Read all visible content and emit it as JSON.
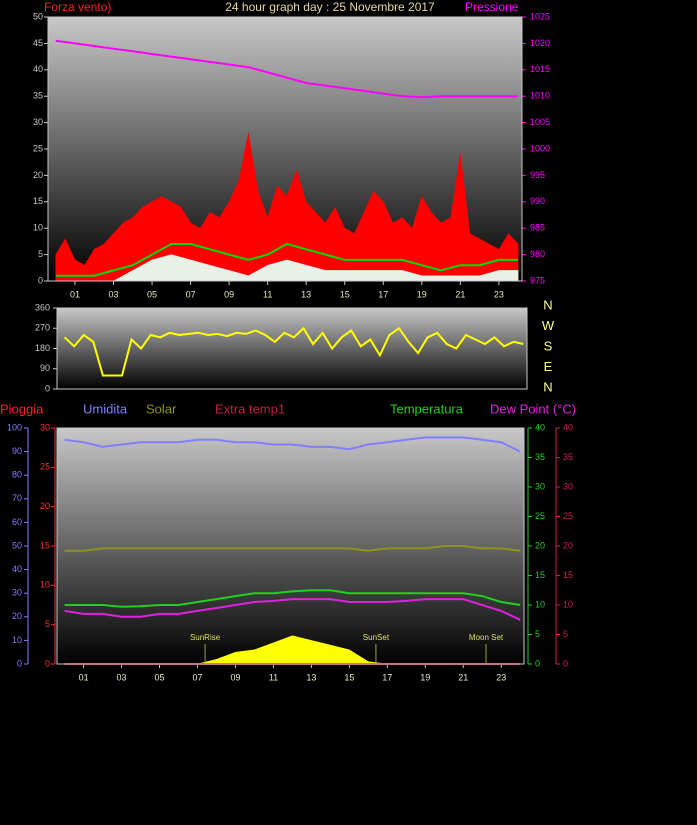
{
  "chart_data": [
    {
      "type": "line",
      "title": "24 hour graph day : 25 Novembre 2017",
      "ylabel": "Forza vento)",
      "y2label": "Pressione",
      "xlim": [
        -0.4,
        24.2
      ],
      "xticks": [
        {
          "value": 1,
          "label": "01"
        },
        {
          "value": 3,
          "label": "03"
        },
        {
          "value": 5,
          "label": "05"
        },
        {
          "value": 7,
          "label": "07"
        },
        {
          "value": 9,
          "label": "09"
        },
        {
          "value": 11,
          "label": "11"
        },
        {
          "value": 13,
          "label": "13"
        },
        {
          "value": 15,
          "label": "15"
        },
        {
          "value": 17,
          "label": "17"
        },
        {
          "value": 19,
          "label": "19"
        },
        {
          "value": 21,
          "label": "21"
        },
        {
          "value": 23,
          "label": "23"
        }
      ],
      "ylim": [
        0,
        50
      ],
      "yticks": [
        0,
        5,
        10,
        15,
        20,
        25,
        30,
        35,
        40,
        45,
        50
      ],
      "y2lim": [
        975,
        1025
      ],
      "y2ticks": [
        975,
        980,
        985,
        990,
        995,
        1000,
        1005,
        1010,
        1015,
        1020,
        1025
      ],
      "axis_colors": {
        "y": "#c8c8c8",
        "y2": "#ff00ff"
      },
      "series": [
        {
          "color": "#ff0000",
          "style": "area",
          "x": [
            0,
            0.5,
            1,
            1.5,
            2,
            2.5,
            3,
            3.5,
            4,
            4.5,
            5,
            5.5,
            6,
            6.5,
            7,
            7.5,
            8,
            8.5,
            9,
            9.5,
            10,
            10.5,
            11,
            11.5,
            12,
            12.5,
            13,
            13.5,
            14,
            14.5,
            15,
            15.5,
            16,
            16.5,
            17,
            17.5,
            18,
            18.5,
            19,
            19.5,
            20,
            20.5,
            21,
            21.5,
            22,
            22.5,
            23,
            23.5,
            24
          ],
          "values": [
            5,
            8,
            4,
            3,
            6,
            7,
            9,
            11,
            12,
            14,
            15,
            16,
            15,
            14,
            11,
            10,
            13,
            12,
            15,
            19,
            28,
            17,
            12,
            18,
            16,
            21,
            15,
            13,
            11,
            14,
            10,
            9,
            13,
            17,
            15,
            11,
            12,
            10,
            16,
            13,
            11,
            12,
            24,
            9,
            8,
            7,
            6,
            9,
            7
          ]
        },
        {
          "color": "#e8f0e8",
          "style": "area",
          "x": [
            0,
            1,
            2,
            3,
            4,
            5,
            6,
            7,
            8,
            9,
            10,
            11,
            12,
            13,
            14,
            15,
            16,
            17,
            18,
            19,
            20,
            21,
            22,
            23,
            24
          ],
          "values": [
            0,
            0,
            0,
            0,
            2,
            4,
            5,
            4,
            3,
            2,
            1,
            3,
            4,
            3,
            2,
            2,
            2,
            2,
            2,
            1,
            1,
            1,
            1,
            2,
            2
          ]
        },
        {
          "color": "#00dd00",
          "style": "line",
          "x": [
            0,
            1,
            2,
            3,
            4,
            5,
            6,
            7,
            8,
            9,
            10,
            11,
            12,
            13,
            14,
            15,
            16,
            17,
            18,
            19,
            20,
            21,
            22,
            23,
            24
          ],
          "values": [
            1,
            1,
            1,
            2,
            3,
            5,
            7,
            7,
            6,
            5,
            4,
            5,
            7,
            6,
            5,
            4,
            4,
            4,
            4,
            3,
            2,
            3,
            3,
            4,
            4
          ]
        },
        {
          "color": "#ff00ff",
          "style": "line",
          "axis": "y2",
          "x": [
            0,
            1,
            2,
            3,
            4,
            5,
            6,
            7,
            8,
            9,
            10,
            11,
            12,
            13,
            14,
            15,
            16,
            17,
            18,
            19,
            20,
            21,
            22,
            23,
            24
          ],
          "values": [
            1020.5,
            1020,
            1019.5,
            1019,
            1018.5,
            1018,
            1017.5,
            1017,
            1016.5,
            1016,
            1015.5,
            1014.5,
            1013.5,
            1012.5,
            1012,
            1011.5,
            1011,
            1010.5,
            1010,
            1009.8,
            1010,
            1010,
            1010,
            1010,
            1010
          ]
        }
      ]
    },
    {
      "type": "line",
      "xlim": [
        -0.4,
        24.2
      ],
      "ylim": [
        0,
        360
      ],
      "yticks": [
        0,
        90,
        180,
        270,
        360
      ],
      "axis_colors": {
        "y": "#c8c8c8"
      },
      "compass_labels": [
        "N",
        "W",
        "S",
        "E",
        "N"
      ],
      "series": [
        {
          "color": "#ffff00",
          "style": "line",
          "x": [
            0,
            0.5,
            1,
            1.5,
            2,
            2.5,
            3,
            3.5,
            4,
            4.5,
            5,
            5.5,
            6,
            6.5,
            7,
            7.5,
            8,
            8.5,
            9,
            9.5,
            10,
            10.5,
            11,
            11.5,
            12,
            12.5,
            13,
            13.5,
            14,
            14.5,
            15,
            15.5,
            16,
            16.5,
            17,
            17.5,
            18,
            18.5,
            19,
            19.5,
            20,
            20.5,
            21,
            21.5,
            22,
            22.5,
            23,
            23.5,
            24
          ],
          "values": [
            230,
            190,
            240,
            210,
            60,
            60,
            60,
            220,
            180,
            240,
            230,
            250,
            240,
            245,
            250,
            240,
            245,
            235,
            250,
            245,
            260,
            240,
            210,
            250,
            230,
            270,
            200,
            250,
            180,
            230,
            260,
            190,
            220,
            150,
            240,
            270,
            210,
            160,
            230,
            250,
            200,
            180,
            240,
            220,
            200,
            230,
            190,
            210,
            200
          ]
        }
      ]
    },
    {
      "type": "line",
      "xlim": [
        -0.4,
        24.2
      ],
      "xticks": [
        {
          "value": 1,
          "label": "01"
        },
        {
          "value": 3,
          "label": "03"
        },
        {
          "value": 5,
          "label": "05"
        },
        {
          "value": 7,
          "label": "07"
        },
        {
          "value": 9,
          "label": "09"
        },
        {
          "value": 11,
          "label": "11"
        },
        {
          "value": 13,
          "label": "13"
        },
        {
          "value": 15,
          "label": "15"
        },
        {
          "value": 17,
          "label": "17"
        },
        {
          "value": 19,
          "label": "19"
        },
        {
          "value": 21,
          "label": "21"
        },
        {
          "value": 23,
          "label": "23"
        }
      ],
      "ylim": [
        0,
        30
      ],
      "yticks": [
        0,
        5,
        10,
        15,
        20,
        25,
        30
      ],
      "y3lim": [
        0,
        100
      ],
      "y3ticks": [
        0,
        10,
        20,
        30,
        40,
        50,
        60,
        70,
        80,
        90,
        100
      ],
      "y2lim": [
        0,
        40
      ],
      "y2ticks": [
        0,
        5,
        10,
        15,
        20,
        25,
        30,
        35,
        40
      ],
      "y4lim": [
        0,
        40
      ],
      "y4ticks": [
        0,
        5,
        10,
        15,
        20,
        25,
        30,
        35,
        40
      ],
      "axis_colors": {
        "y": "#ff3030",
        "y3": "#8080ff",
        "y2": "#20d020",
        "y4": "#d02050"
      },
      "series": [
        {
          "color": "#ffff00",
          "style": "area",
          "axis": "y3",
          "x": [
            0,
            1,
            2,
            3,
            4,
            5,
            6,
            7,
            8,
            9,
            10,
            11,
            12,
            13,
            14,
            15,
            16,
            17,
            18,
            19,
            20,
            21,
            22,
            23,
            24
          ],
          "values": [
            0,
            0,
            0,
            0,
            0,
            0,
            0,
            0,
            2,
            5,
            6,
            9,
            12,
            10,
            8,
            6,
            1,
            0,
            0,
            0,
            0,
            0,
            0,
            0,
            0
          ]
        },
        {
          "name": "Pioggia",
          "color": "#ff2020",
          "style": "line",
          "axis": "y",
          "x": [
            0,
            1,
            2,
            3,
            4,
            5,
            6,
            7,
            8,
            9,
            10,
            11,
            12,
            13,
            14,
            15,
            16,
            17,
            18,
            19,
            20,
            21,
            22,
            23,
            24
          ],
          "values": [
            0,
            0,
            0,
            0,
            0,
            0,
            0,
            0,
            0,
            0,
            0,
            0,
            0,
            0,
            0,
            0,
            0,
            0,
            0,
            0,
            0,
            0,
            0,
            0,
            0
          ]
        },
        {
          "name": "Umidita",
          "color": "#8080ff",
          "style": "line",
          "axis": "y3",
          "x": [
            0,
            1,
            2,
            3,
            4,
            5,
            6,
            7,
            8,
            9,
            10,
            11,
            12,
            13,
            14,
            15,
            16,
            17,
            18,
            19,
            20,
            21,
            22,
            23,
            24
          ],
          "values": [
            95,
            94,
            92,
            93,
            94,
            94,
            94,
            95,
            95,
            94,
            94,
            93,
            93,
            92,
            92,
            91,
            93,
            94,
            95,
            96,
            96,
            96,
            95,
            94,
            90
          ]
        },
        {
          "name": "Solar",
          "color": "#909020",
          "style": "line",
          "axis": "y3",
          "x": [
            0,
            1,
            2,
            3,
            4,
            5,
            6,
            7,
            8,
            9,
            10,
            11,
            12,
            13,
            14,
            15,
            16,
            17,
            18,
            19,
            20,
            21,
            22,
            23,
            24
          ],
          "values": [
            48,
            48,
            49,
            49,
            49,
            49,
            49,
            49,
            49,
            49,
            49,
            49,
            49,
            49,
            49,
            49,
            48,
            49,
            49,
            49,
            50,
            50,
            49,
            49,
            48
          ]
        },
        {
          "name": "Extra temp1",
          "color": "#c02040",
          "style": "line",
          "axis": "y4",
          "x": [
            0,
            1,
            2,
            3,
            4,
            5,
            6,
            7,
            8,
            9,
            10,
            11,
            12,
            13,
            14,
            15,
            16,
            17,
            18,
            19,
            20,
            21,
            22,
            23,
            24
          ],
          "values": [
            0,
            0,
            0,
            0,
            0,
            0,
            0,
            0,
            0,
            0,
            0,
            0,
            0,
            0,
            0,
            0,
            0,
            0,
            0,
            0,
            0,
            0,
            0,
            0,
            0
          ]
        },
        {
          "name": "Temperatura",
          "color": "#20d020",
          "style": "line",
          "axis": "y2",
          "x": [
            0,
            1,
            2,
            3,
            4,
            5,
            6,
            7,
            8,
            9,
            10,
            11,
            12,
            13,
            14,
            15,
            16,
            17,
            18,
            19,
            20,
            21,
            22,
            23,
            24
          ],
          "values": [
            10,
            10,
            10,
            9.7,
            9.8,
            10,
            10,
            10.5,
            11,
            11.5,
            12,
            12,
            12.3,
            12.5,
            12.5,
            12,
            12,
            12,
            12,
            12,
            12,
            12,
            11.5,
            10.5,
            10
          ]
        },
        {
          "name": "Dew Point (°C)",
          "color": "#e020e0",
          "style": "line",
          "axis": "y4",
          "x": [
            0,
            1,
            2,
            3,
            4,
            5,
            6,
            7,
            8,
            9,
            10,
            11,
            12,
            13,
            14,
            15,
            16,
            17,
            18,
            19,
            20,
            21,
            22,
            23,
            24
          ],
          "values": [
            9,
            8.5,
            8.5,
            8,
            8,
            8.5,
            8.5,
            9,
            9.5,
            10,
            10.5,
            10.7,
            11,
            11,
            11,
            10.5,
            10.5,
            10.5,
            10.7,
            11,
            11,
            11,
            10,
            9,
            7.5
          ]
        }
      ],
      "annotations": [
        {
          "text": "SunRise",
          "x": 7.4
        },
        {
          "text": "SunSet",
          "x": 16.4
        },
        {
          "text": "Moon Set",
          "x": 22.2
        }
      ]
    }
  ]
}
